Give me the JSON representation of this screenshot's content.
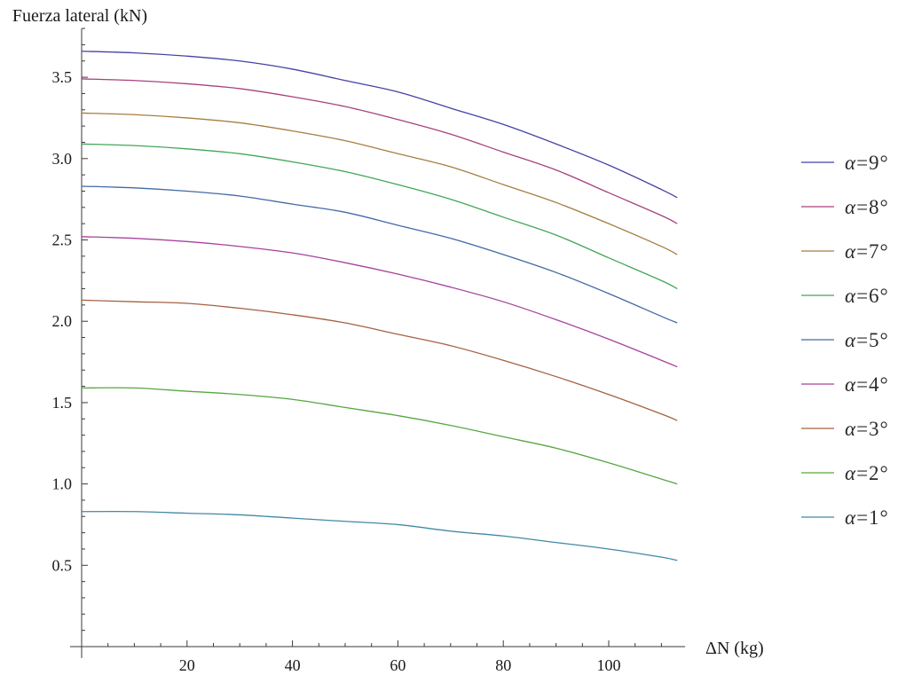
{
  "chart_data": {
    "type": "line",
    "ylabel": "Fuerza lateral (kN)",
    "xlabel": "ΔN (kg)",
    "xlim": [
      0,
      113
    ],
    "ylim": [
      0,
      3.8
    ],
    "grid": false,
    "legend_position": "right",
    "xticks": [
      {
        "value": 20,
        "label": "20"
      },
      {
        "value": 40,
        "label": "40"
      },
      {
        "value": 60,
        "label": "60"
      },
      {
        "value": 80,
        "label": "80"
      },
      {
        "value": 100,
        "label": "100"
      }
    ],
    "yticks": [
      {
        "value": 0.5,
        "label": "0.5"
      },
      {
        "value": 1.0,
        "label": "1.0"
      },
      {
        "value": 1.5,
        "label": "1.5"
      },
      {
        "value": 2.0,
        "label": "2.0"
      },
      {
        "value": 2.5,
        "label": "2.5"
      },
      {
        "value": 3.0,
        "label": "3.0"
      },
      {
        "value": 3.5,
        "label": "3.5"
      }
    ],
    "x": [
      0,
      10,
      20,
      30,
      40,
      50,
      60,
      70,
      80,
      90,
      100,
      110,
      113
    ],
    "series": [
      {
        "name": "α=9°",
        "color": "#4442A6",
        "values": [
          3.66,
          3.65,
          3.63,
          3.6,
          3.55,
          3.48,
          3.41,
          3.31,
          3.21,
          3.09,
          2.96,
          2.81,
          2.76
        ]
      },
      {
        "name": "α=8°",
        "color": "#A6427E",
        "values": [
          3.49,
          3.48,
          3.46,
          3.43,
          3.38,
          3.32,
          3.24,
          3.15,
          3.04,
          2.93,
          2.79,
          2.65,
          2.6
        ]
      },
      {
        "name": "α=7°",
        "color": "#A67E42",
        "values": [
          3.28,
          3.27,
          3.25,
          3.22,
          3.17,
          3.11,
          3.03,
          2.95,
          2.84,
          2.73,
          2.6,
          2.46,
          2.41
        ]
      },
      {
        "name": "α=6°",
        "color": "#42A658",
        "values": [
          3.09,
          3.08,
          3.06,
          3.03,
          2.98,
          2.92,
          2.84,
          2.75,
          2.64,
          2.53,
          2.39,
          2.25,
          2.2
        ]
      },
      {
        "name": "α=5°",
        "color": "#426AA6",
        "values": [
          2.83,
          2.82,
          2.8,
          2.77,
          2.72,
          2.67,
          2.59,
          2.51,
          2.41,
          2.3,
          2.17,
          2.03,
          1.99
        ]
      },
      {
        "name": "α=4°",
        "color": "#A6429C",
        "values": [
          2.52,
          2.51,
          2.49,
          2.46,
          2.42,
          2.36,
          2.29,
          2.21,
          2.12,
          2.01,
          1.89,
          1.76,
          1.72
        ]
      },
      {
        "name": "α=3°",
        "color": "#A66042",
        "values": [
          2.13,
          2.12,
          2.11,
          2.08,
          2.04,
          1.99,
          1.92,
          1.85,
          1.76,
          1.66,
          1.55,
          1.43,
          1.39
        ]
      },
      {
        "name": "α=2°",
        "color": "#56A642",
        "values": [
          1.59,
          1.59,
          1.57,
          1.55,
          1.52,
          1.47,
          1.42,
          1.36,
          1.29,
          1.22,
          1.13,
          1.03,
          1.0
        ]
      },
      {
        "name": "α=1°",
        "color": "#4288A6",
        "values": [
          0.83,
          0.83,
          0.82,
          0.81,
          0.79,
          0.77,
          0.75,
          0.71,
          0.68,
          0.64,
          0.6,
          0.55,
          0.53
        ]
      }
    ]
  }
}
